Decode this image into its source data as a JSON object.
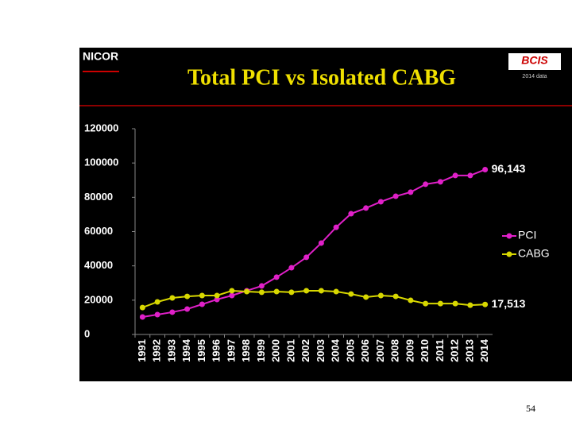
{
  "slide": {
    "logo_left": "NICOR",
    "logo_right": "BCIS",
    "logo_right_note": "2014 data",
    "page_number": "54"
  },
  "chart_data": {
    "type": "line",
    "title": "Total PCI vs Isolated CABG",
    "categories": [
      "1991",
      "1992",
      "1993",
      "1994",
      "1995",
      "1996",
      "1997",
      "1998",
      "1999",
      "2000",
      "2001",
      "2002",
      "2003",
      "2004",
      "2005",
      "2006",
      "2007",
      "2008",
      "2009",
      "2010",
      "2011",
      "2012",
      "2013",
      "2014"
    ],
    "series": [
      {
        "name": "PCI",
        "color": "#e020c8",
        "values": [
          10200,
          11600,
          13000,
          14800,
          17600,
          20400,
          22700,
          25500,
          28300,
          33400,
          38900,
          45000,
          53300,
          62500,
          70400,
          73700,
          77400,
          80600,
          83000,
          87600,
          89000,
          92700,
          92700,
          96143
        ],
        "value_labels": [
          null,
          null,
          null,
          null,
          null,
          null,
          null,
          null,
          null,
          null,
          null,
          null,
          null,
          null,
          null,
          null,
          null,
          null,
          null,
          null,
          null,
          null,
          null,
          "96,143"
        ]
      },
      {
        "name": "CABG",
        "color": "#d8d800",
        "values": [
          15700,
          19000,
          21300,
          22200,
          22700,
          22700,
          25500,
          25000,
          24600,
          25000,
          24600,
          25500,
          25500,
          25000,
          23600,
          21800,
          22700,
          22200,
          19900,
          18000,
          18000,
          18000,
          17100,
          17513
        ],
        "value_labels": [
          null,
          null,
          null,
          null,
          null,
          null,
          null,
          null,
          null,
          null,
          null,
          null,
          null,
          null,
          null,
          null,
          null,
          null,
          null,
          null,
          null,
          null,
          null,
          "17,513"
        ]
      }
    ],
    "ylim": [
      0,
      120000
    ],
    "yticks": [
      0,
      20000,
      40000,
      60000,
      80000,
      100000,
      120000
    ],
    "grid": false,
    "legend": "right"
  }
}
